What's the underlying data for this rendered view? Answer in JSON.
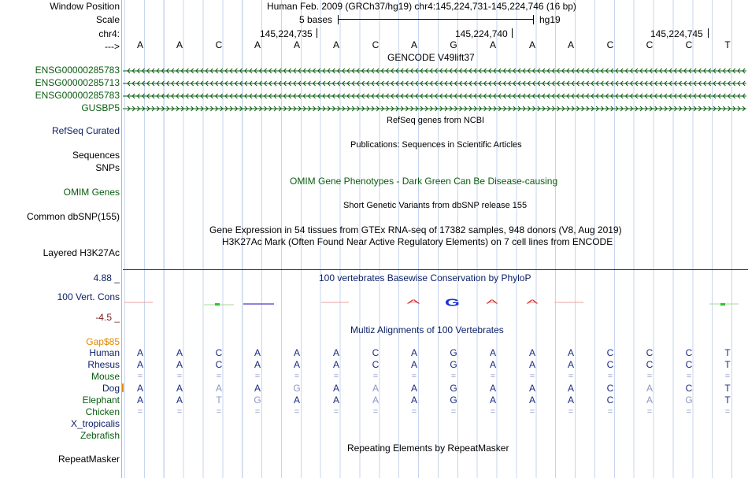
{
  "header": {
    "window_position_label": "Window Position",
    "scale_label": "Scale",
    "chrom_label": "chr4:",
    "arrow_label": "--->",
    "assembly_text": "Human Feb. 2009 (GRCh37/hg19)   chr4:145,224,731-145,224,746 (16 bp)",
    "scale_bases": "5 bases",
    "scale_db": "hg19",
    "positions": [
      "145,224,735",
      "145,224,740",
      "145,224,745"
    ]
  },
  "reference_bases": [
    "A",
    "A",
    "C",
    "A",
    "A",
    "A",
    "C",
    "A",
    "G",
    "A",
    "A",
    "A",
    "C",
    "C",
    "C",
    "T"
  ],
  "tracks": {
    "gencode_title": "GENCODE V49lift37",
    "genes": [
      {
        "name": "ENSG00000285783",
        "strand": "minus"
      },
      {
        "name": "ENSG00000285713",
        "strand": "minus"
      },
      {
        "name": "ENSG00000285783",
        "strand": "minus"
      },
      {
        "name": "GUSBP5",
        "strand": "plus"
      }
    ],
    "refseq_label": "RefSeq Curated",
    "refseq_title": "RefSeq genes from NCBI",
    "publications_title": "Publications: Sequences in Scientific Articles",
    "sequences_label": "Sequences",
    "snps_label": "SNPs",
    "omim_title": "OMIM Gene Phenotypes - Dark Green Can Be Disease-causing",
    "omim_label": "OMIM Genes",
    "dbsnp_title": "Short Genetic Variants from dbSNP release 155",
    "dbsnp_label": "Common dbSNP(155)",
    "gtex_title": "Gene Expression in 54 tissues from GTEx RNA-seq of 17382 samples, 948 donors (V8, Aug 2019)",
    "h3k27ac_title": "H3K27Ac Mark (Often Found Near Active Regulatory Elements) on 7 cell lines from ENCODE",
    "h3k27ac_label": "Layered H3K27Ac",
    "phylop_max": "4.88 _",
    "phylop_min": "-4.5 _",
    "phylop_title": "100 vertebrates Basewise Conservation by PhyloP",
    "cons_label": "100 Vert. Cons",
    "multiz_title": "Multiz Alignments of 100 Vertebrates",
    "gaps_label": "Gap$85",
    "repeat_title": "Repeating Elements by RepeatMasker",
    "repeat_label": "RepeatMasker"
  },
  "alignment": [
    {
      "species": "Human",
      "row": "AACAAACAGAAACCCT"
    },
    {
      "species": "Rhesus",
      "row": "AACAAACAGAAACCCT"
    },
    {
      "species": "Mouse",
      "row": "================"
    },
    {
      "species": "Dog",
      "row": "AAAAGAAAGAAACACT"
    },
    {
      "species": "Elephant",
      "row": "AATGAAAAGAAACAGT"
    },
    {
      "species": "Chicken",
      "row": "================"
    },
    {
      "species": "X_tropicalis",
      "row": ""
    },
    {
      "species": "Zebrafish",
      "row": ""
    }
  ],
  "colors": {
    "gene": "#0a5c10",
    "label_navy": "#0b1f66",
    "base_match": "#1a2a80",
    "base_mismatch": "#8e97c4",
    "phylop_pos": "#1633d6",
    "phylop_neg": "#d23030",
    "gaps": "#e08a00"
  }
}
